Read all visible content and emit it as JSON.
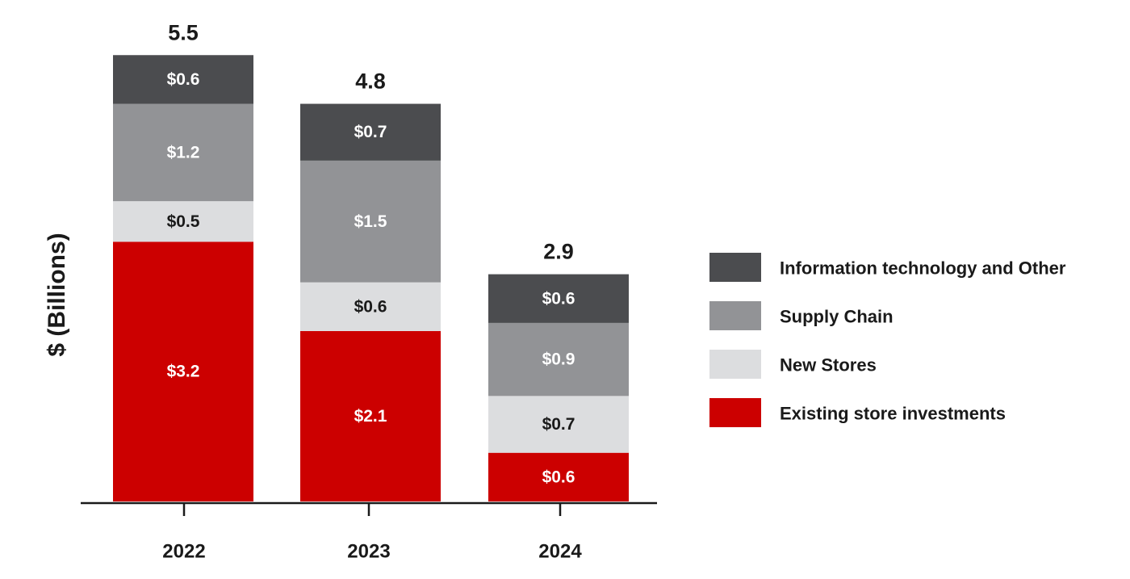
{
  "chart_data": {
    "type": "bar",
    "stacked": true,
    "title": "",
    "xlabel": "",
    "ylabel": "$ (Billions)",
    "categories": [
      "2022",
      "2023",
      "2024"
    ],
    "totals": [
      "5.5",
      "4.8",
      "2.9"
    ],
    "series": [
      {
        "name": "Existing store investments",
        "values": [
          3.2,
          2.1,
          0.6
        ],
        "labels": [
          "$3.2",
          "$2.1",
          "$0.6"
        ],
        "color": "#cc0000",
        "label_color": "#ffffff"
      },
      {
        "name": "New Stores",
        "values": [
          0.5,
          0.6,
          0.7
        ],
        "labels": [
          "$0.5",
          "$0.6",
          "$0.7"
        ],
        "color": "#dcdddf",
        "label_color": "#1a1a1a"
      },
      {
        "name": "Supply Chain",
        "values": [
          1.2,
          1.5,
          0.9
        ],
        "labels": [
          "$1.2",
          "$1.5",
          "$0.9"
        ],
        "color": "#929396",
        "label_color": "#ffffff"
      },
      {
        "name": "Information technology and Other",
        "values": [
          0.6,
          0.7,
          0.6
        ],
        "labels": [
          "$0.6",
          "$0.7",
          "$0.6"
        ],
        "color": "#4b4c4f",
        "label_color": "#ffffff"
      }
    ],
    "legend_order": [
      "Information technology and Other",
      "Supply Chain",
      "New Stores",
      "Existing store investments"
    ],
    "legend_position": "right",
    "ylim": [
      0,
      5.5
    ],
    "grid": false
  }
}
